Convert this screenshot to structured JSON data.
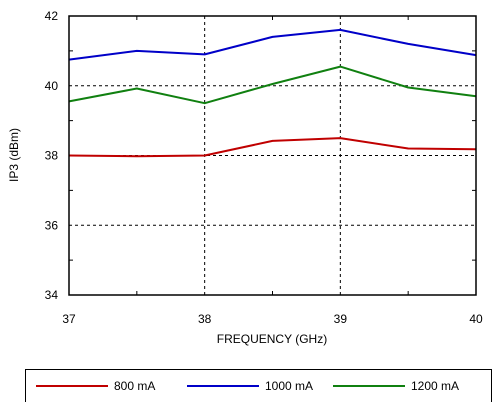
{
  "chart_data": {
    "type": "line",
    "xlabel": "FREQUENCY (GHz)",
    "ylabel": "IP3 (dBm)",
    "xlim": [
      37,
      40
    ],
    "ylim": [
      34,
      42
    ],
    "x_ticks": [
      "37",
      "38",
      "39",
      "40"
    ],
    "y_ticks": [
      "34",
      "36",
      "38",
      "40",
      "42"
    ],
    "grid": "dashed, major ticks",
    "legend_position": "bottom",
    "series": [
      {
        "name": "800 mA",
        "color": "#c00000",
        "points": [
          [
            37,
            38.0
          ],
          [
            37.5,
            37.98
          ],
          [
            38,
            38.0
          ],
          [
            38.5,
            38.42
          ],
          [
            39,
            38.5
          ],
          [
            39.5,
            38.2
          ],
          [
            40,
            38.18
          ]
        ]
      },
      {
        "name": "1000 mA",
        "color": "#0000c8",
        "points": [
          [
            37,
            40.75
          ],
          [
            37.5,
            41.0
          ],
          [
            38,
            40.9
          ],
          [
            38.5,
            41.4
          ],
          [
            39,
            41.6
          ],
          [
            39.5,
            41.2
          ],
          [
            40,
            40.88
          ]
        ]
      },
      {
        "name": "1200 mA",
        "color": "#108010",
        "points": [
          [
            37,
            39.55
          ],
          [
            37.5,
            39.92
          ],
          [
            38,
            39.5
          ],
          [
            38.5,
            40.05
          ],
          [
            39,
            40.55
          ],
          [
            39.5,
            39.95
          ],
          [
            40,
            39.7
          ]
        ]
      }
    ]
  }
}
